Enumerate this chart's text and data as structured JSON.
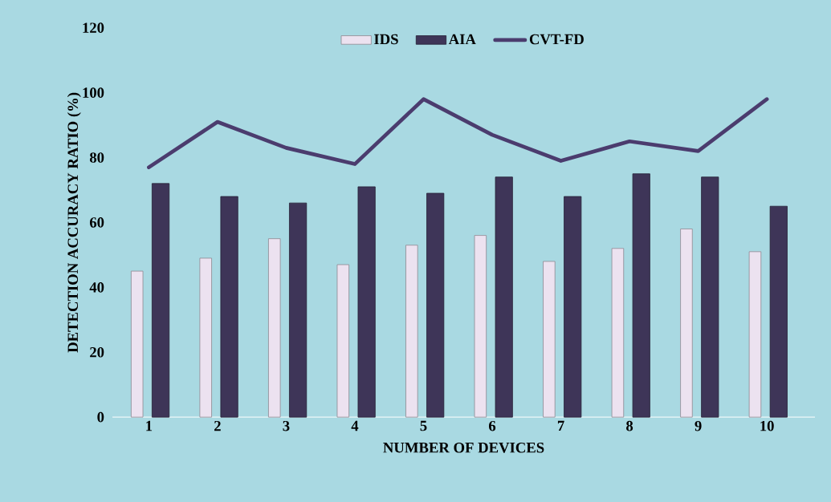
{
  "chart_data": {
    "type": "bar",
    "xlabel": "NUMBER OF  DEVICES",
    "ylabel": "DETECTION ACCURACY  RATIO (%)",
    "categories": [
      "1",
      "2",
      "3",
      "4",
      "5",
      "6",
      "7",
      "8",
      "9",
      "10"
    ],
    "series": [
      {
        "name": "IDS",
        "color": "#ece2f0",
        "values": [
          45,
          49,
          55,
          47,
          53,
          56,
          48,
          52,
          58,
          51
        ]
      },
      {
        "name": "AIA",
        "color": "#3e3558",
        "values": [
          72,
          68,
          66,
          71,
          69,
          74,
          68,
          75,
          74,
          65
        ]
      },
      {
        "name": "CVT-FD",
        "type": "line",
        "color": "#4b3c6e",
        "values": [
          77,
          91,
          83,
          78,
          98,
          87,
          79,
          85,
          82,
          98
        ]
      }
    ],
    "ylim": [
      0,
      120
    ],
    "yticks": [
      0,
      20,
      40,
      60,
      80,
      100,
      120
    ],
    "legend": "top",
    "marker": "none",
    "line_style": "solid"
  }
}
